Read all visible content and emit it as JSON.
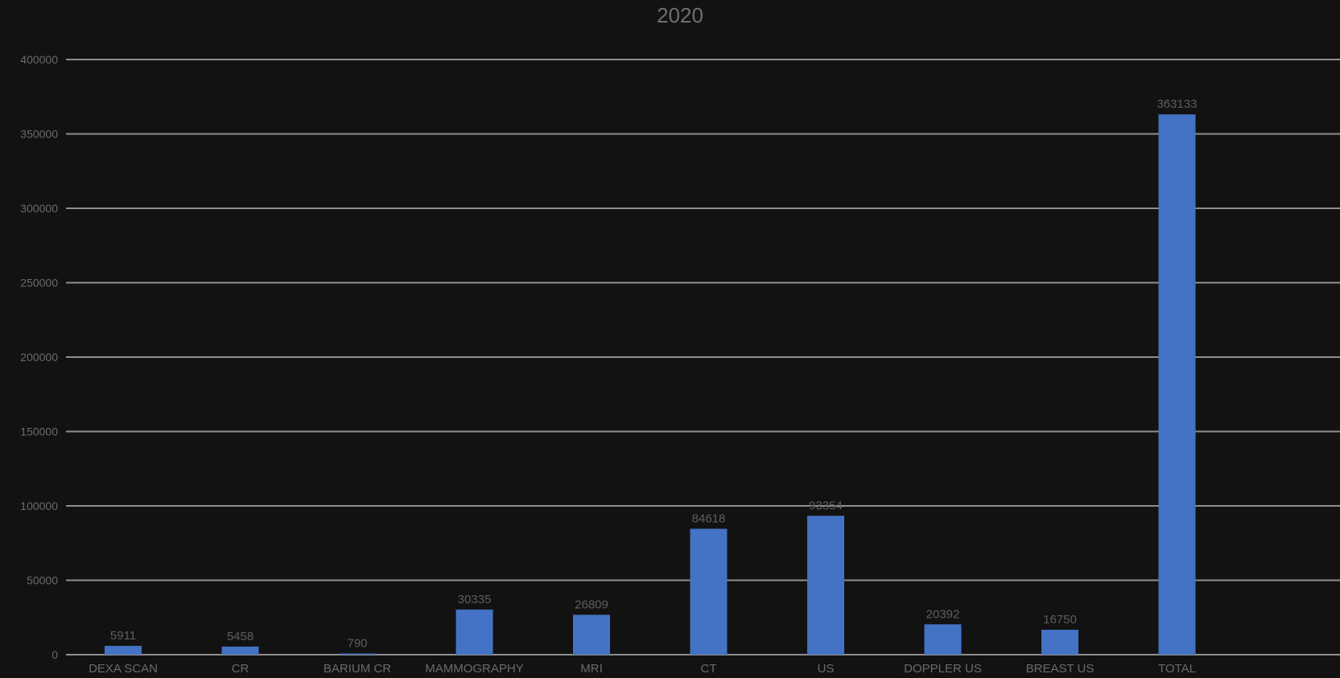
{
  "chart_data": {
    "type": "bar",
    "title": "2020",
    "xlabel": "",
    "ylabel": "",
    "categories": [
      "DEXA SCAN",
      "CR",
      "BARIUM CR",
      "MAMMOGRAPHY",
      "MRI",
      "CT",
      "US",
      "DOPPLER US",
      "BREAST US",
      "TOTAL"
    ],
    "values": [
      5911,
      5458,
      790,
      30335,
      26809,
      84618,
      93354,
      20392,
      16750,
      363133
    ],
    "data_labels": [
      "5911",
      "5458",
      "790",
      "30335",
      "26809",
      "84618",
      "93354",
      "20392",
      "16750",
      "363133"
    ],
    "ylim": [
      0,
      400000
    ],
    "yticks": [
      0,
      50000,
      100000,
      150000,
      200000,
      250000,
      300000,
      350000,
      400000
    ],
    "ytick_labels": [
      "0",
      "50000",
      "100000",
      "150000",
      "200000",
      "250000",
      "300000",
      "350000",
      "400000"
    ],
    "grid": true,
    "legend": "none",
    "colors": {
      "background": "#121212",
      "bar": "#4472c4",
      "grid": "#8f8f8f",
      "text": "#6a6a6a"
    }
  }
}
